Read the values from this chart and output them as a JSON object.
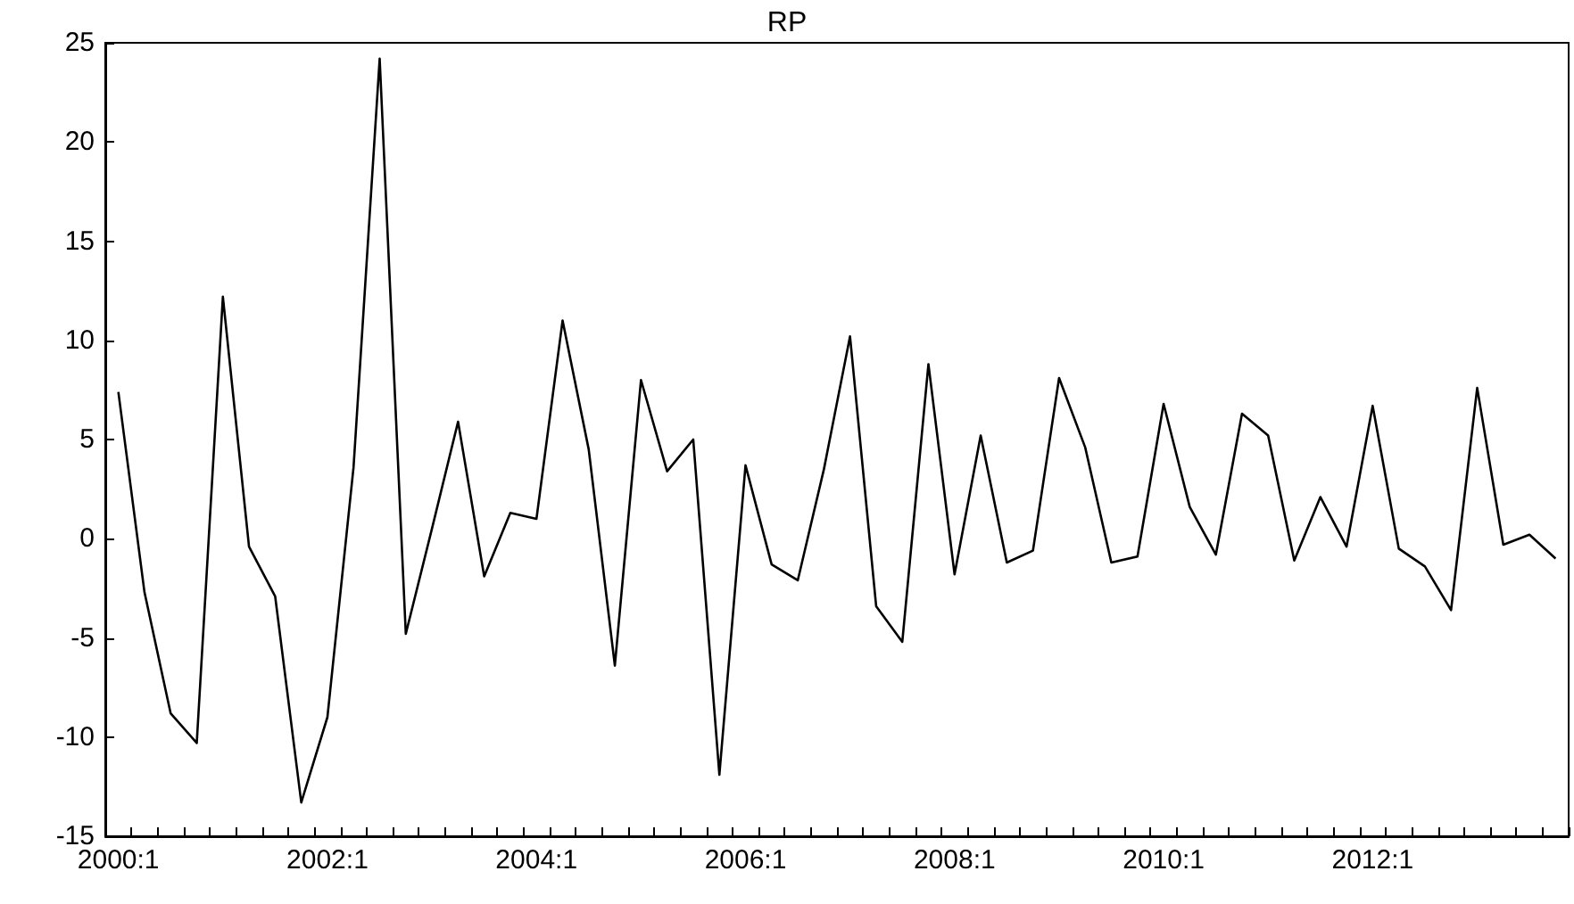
{
  "chart_data": {
    "type": "line",
    "title": "RP",
    "categories": [
      "2000:1",
      null,
      null,
      null,
      null,
      null,
      null,
      null,
      "2002:1",
      null,
      null,
      null,
      null,
      null,
      null,
      null,
      "2004:1",
      null,
      null,
      null,
      null,
      null,
      null,
      null,
      "2006:1",
      null,
      null,
      null,
      null,
      null,
      null,
      null,
      "2008:1",
      null,
      null,
      null,
      null,
      null,
      null,
      null,
      "2010:1",
      null,
      null,
      null,
      null,
      null,
      null,
      null,
      "2012:1",
      null,
      null,
      null,
      null,
      null,
      null,
      null
    ],
    "series": [
      {
        "color": "#000000",
        "values": [
          7.4,
          -2.7,
          -8.8,
          -10.3,
          12.2,
          -0.4,
          -2.9,
          -13.3,
          -9.0,
          3.6,
          24.2,
          -4.8,
          0.5,
          5.9,
          -1.9,
          1.3,
          1.0,
          11.0,
          4.5,
          -6.4,
          8.0,
          3.4,
          5.0,
          -11.9,
          3.7,
          -1.3,
          -2.1,
          3.5,
          10.2,
          -3.4,
          -5.2,
          8.8,
          -1.8,
          5.2,
          -1.2,
          -0.6,
          8.1,
          4.6,
          -1.2,
          -0.9,
          6.8,
          1.6,
          -0.8,
          6.3,
          5.2,
          -1.1,
          2.1,
          -0.4,
          6.7,
          -0.5,
          -1.4,
          -3.6,
          7.6,
          -0.3,
          0.2,
          -1.0
        ]
      }
    ],
    "ylim": [
      -15,
      25
    ],
    "yticks": [
      -15,
      -10,
      -5,
      0,
      5,
      10,
      15,
      20,
      25
    ],
    "grid": false,
    "marker": "none",
    "line_style": "solid"
  }
}
